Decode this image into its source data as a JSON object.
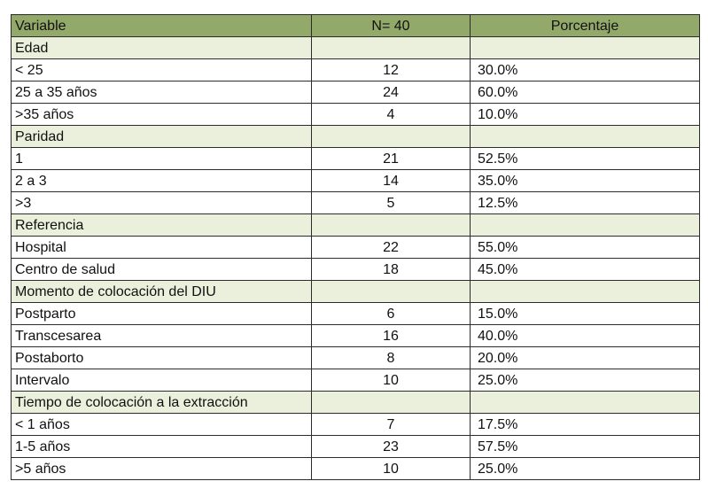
{
  "table": {
    "headers": {
      "variable": "Variable",
      "n": "N= 40",
      "pct": "Porcentaje"
    },
    "groups": [
      {
        "label": "Edad",
        "rows": [
          {
            "label": "< 25",
            "n": "12",
            "pct": "30.0%"
          },
          {
            "label": "25 a 35 años",
            "n": "24",
            "pct": "60.0%"
          },
          {
            "label": ">35 años",
            "n": "4",
            "pct": "10.0%"
          }
        ]
      },
      {
        "label": "Paridad",
        "rows": [
          {
            "label": "1",
            "n": "21",
            "pct": "52.5%"
          },
          {
            "label": "2 a 3",
            "n": "14",
            "pct": "35.0%"
          },
          {
            "label": ">3",
            "n": "5",
            "pct": "12.5%"
          }
        ]
      },
      {
        "label": "Referencia",
        "rows": [
          {
            "label": "Hospital",
            "n": "22",
            "pct": "55.0%"
          },
          {
            "label": "Centro de salud",
            "n": "18",
            "pct": "45.0%"
          }
        ]
      },
      {
        "label": "Momento de colocación del DIU",
        "rows": [
          {
            "label": "Postparto",
            "n": "6",
            "pct": "15.0%"
          },
          {
            "label": "Transcesarea",
            "n": "16",
            "pct": "40.0%"
          },
          {
            "label": "Postaborto",
            "n": "8",
            "pct": "20.0%"
          },
          {
            "label": "Intervalo",
            "n": "10",
            "pct": "25.0%"
          }
        ]
      },
      {
        "label": "Tiempo de colocación a la extracción",
        "rows": [
          {
            "label": "< 1 años",
            "n": "7",
            "pct": "17.5%"
          },
          {
            "label": "1-5 años",
            "n": "23",
            "pct": "57.5%"
          },
          {
            "label": ">5 años",
            "n": "10",
            "pct": "25.0%"
          }
        ]
      }
    ]
  }
}
